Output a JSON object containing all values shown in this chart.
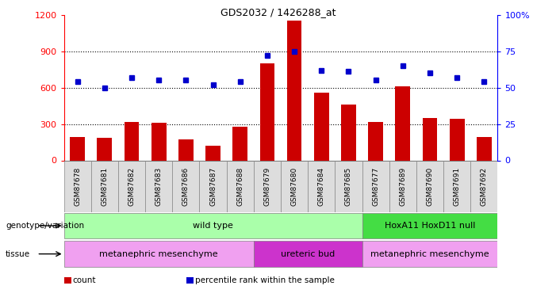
{
  "title": "GDS2032 / 1426288_at",
  "samples": [
    "GSM87678",
    "GSM87681",
    "GSM87682",
    "GSM87683",
    "GSM87686",
    "GSM87687",
    "GSM87688",
    "GSM87679",
    "GSM87680",
    "GSM87684",
    "GSM87685",
    "GSM87677",
    "GSM87689",
    "GSM87690",
    "GSM87691",
    "GSM87692"
  ],
  "counts": [
    195,
    185,
    320,
    310,
    175,
    120,
    280,
    800,
    1150,
    560,
    460,
    320,
    610,
    350,
    340,
    195
  ],
  "percentiles": [
    54,
    50,
    57,
    55,
    55,
    52,
    54,
    72,
    75,
    62,
    61,
    55,
    65,
    60,
    57,
    54
  ],
  "bar_color": "#cc0000",
  "dot_color": "#0000cc",
  "ylim_left": [
    0,
    1200
  ],
  "ylim_right": [
    0,
    100
  ],
  "yticks_left": [
    0,
    300,
    600,
    900,
    1200
  ],
  "yticks_right": [
    0,
    25,
    50,
    75,
    100
  ],
  "genotype_groups": [
    {
      "label": "wild type",
      "start": 0,
      "end": 10,
      "color": "#aaffaa"
    },
    {
      "label": "HoxA11 HoxD11 null",
      "start": 11,
      "end": 15,
      "color": "#44dd44"
    }
  ],
  "tissue_groups": [
    {
      "label": "metanephric mesenchyme",
      "start": 0,
      "end": 6,
      "color": "#f0a0f0"
    },
    {
      "label": "ureteric bud",
      "start": 7,
      "end": 10,
      "color": "#cc33cc"
    },
    {
      "label": "metanephric mesenchyme",
      "start": 11,
      "end": 15,
      "color": "#f0a0f0"
    }
  ],
  "legend_items": [
    {
      "label": "count",
      "color": "#cc0000"
    },
    {
      "label": "percentile rank within the sample",
      "color": "#0000cc"
    }
  ],
  "background_color": "#ffffff",
  "cell_bg": "#dddddd",
  "cell_border": "#888888"
}
